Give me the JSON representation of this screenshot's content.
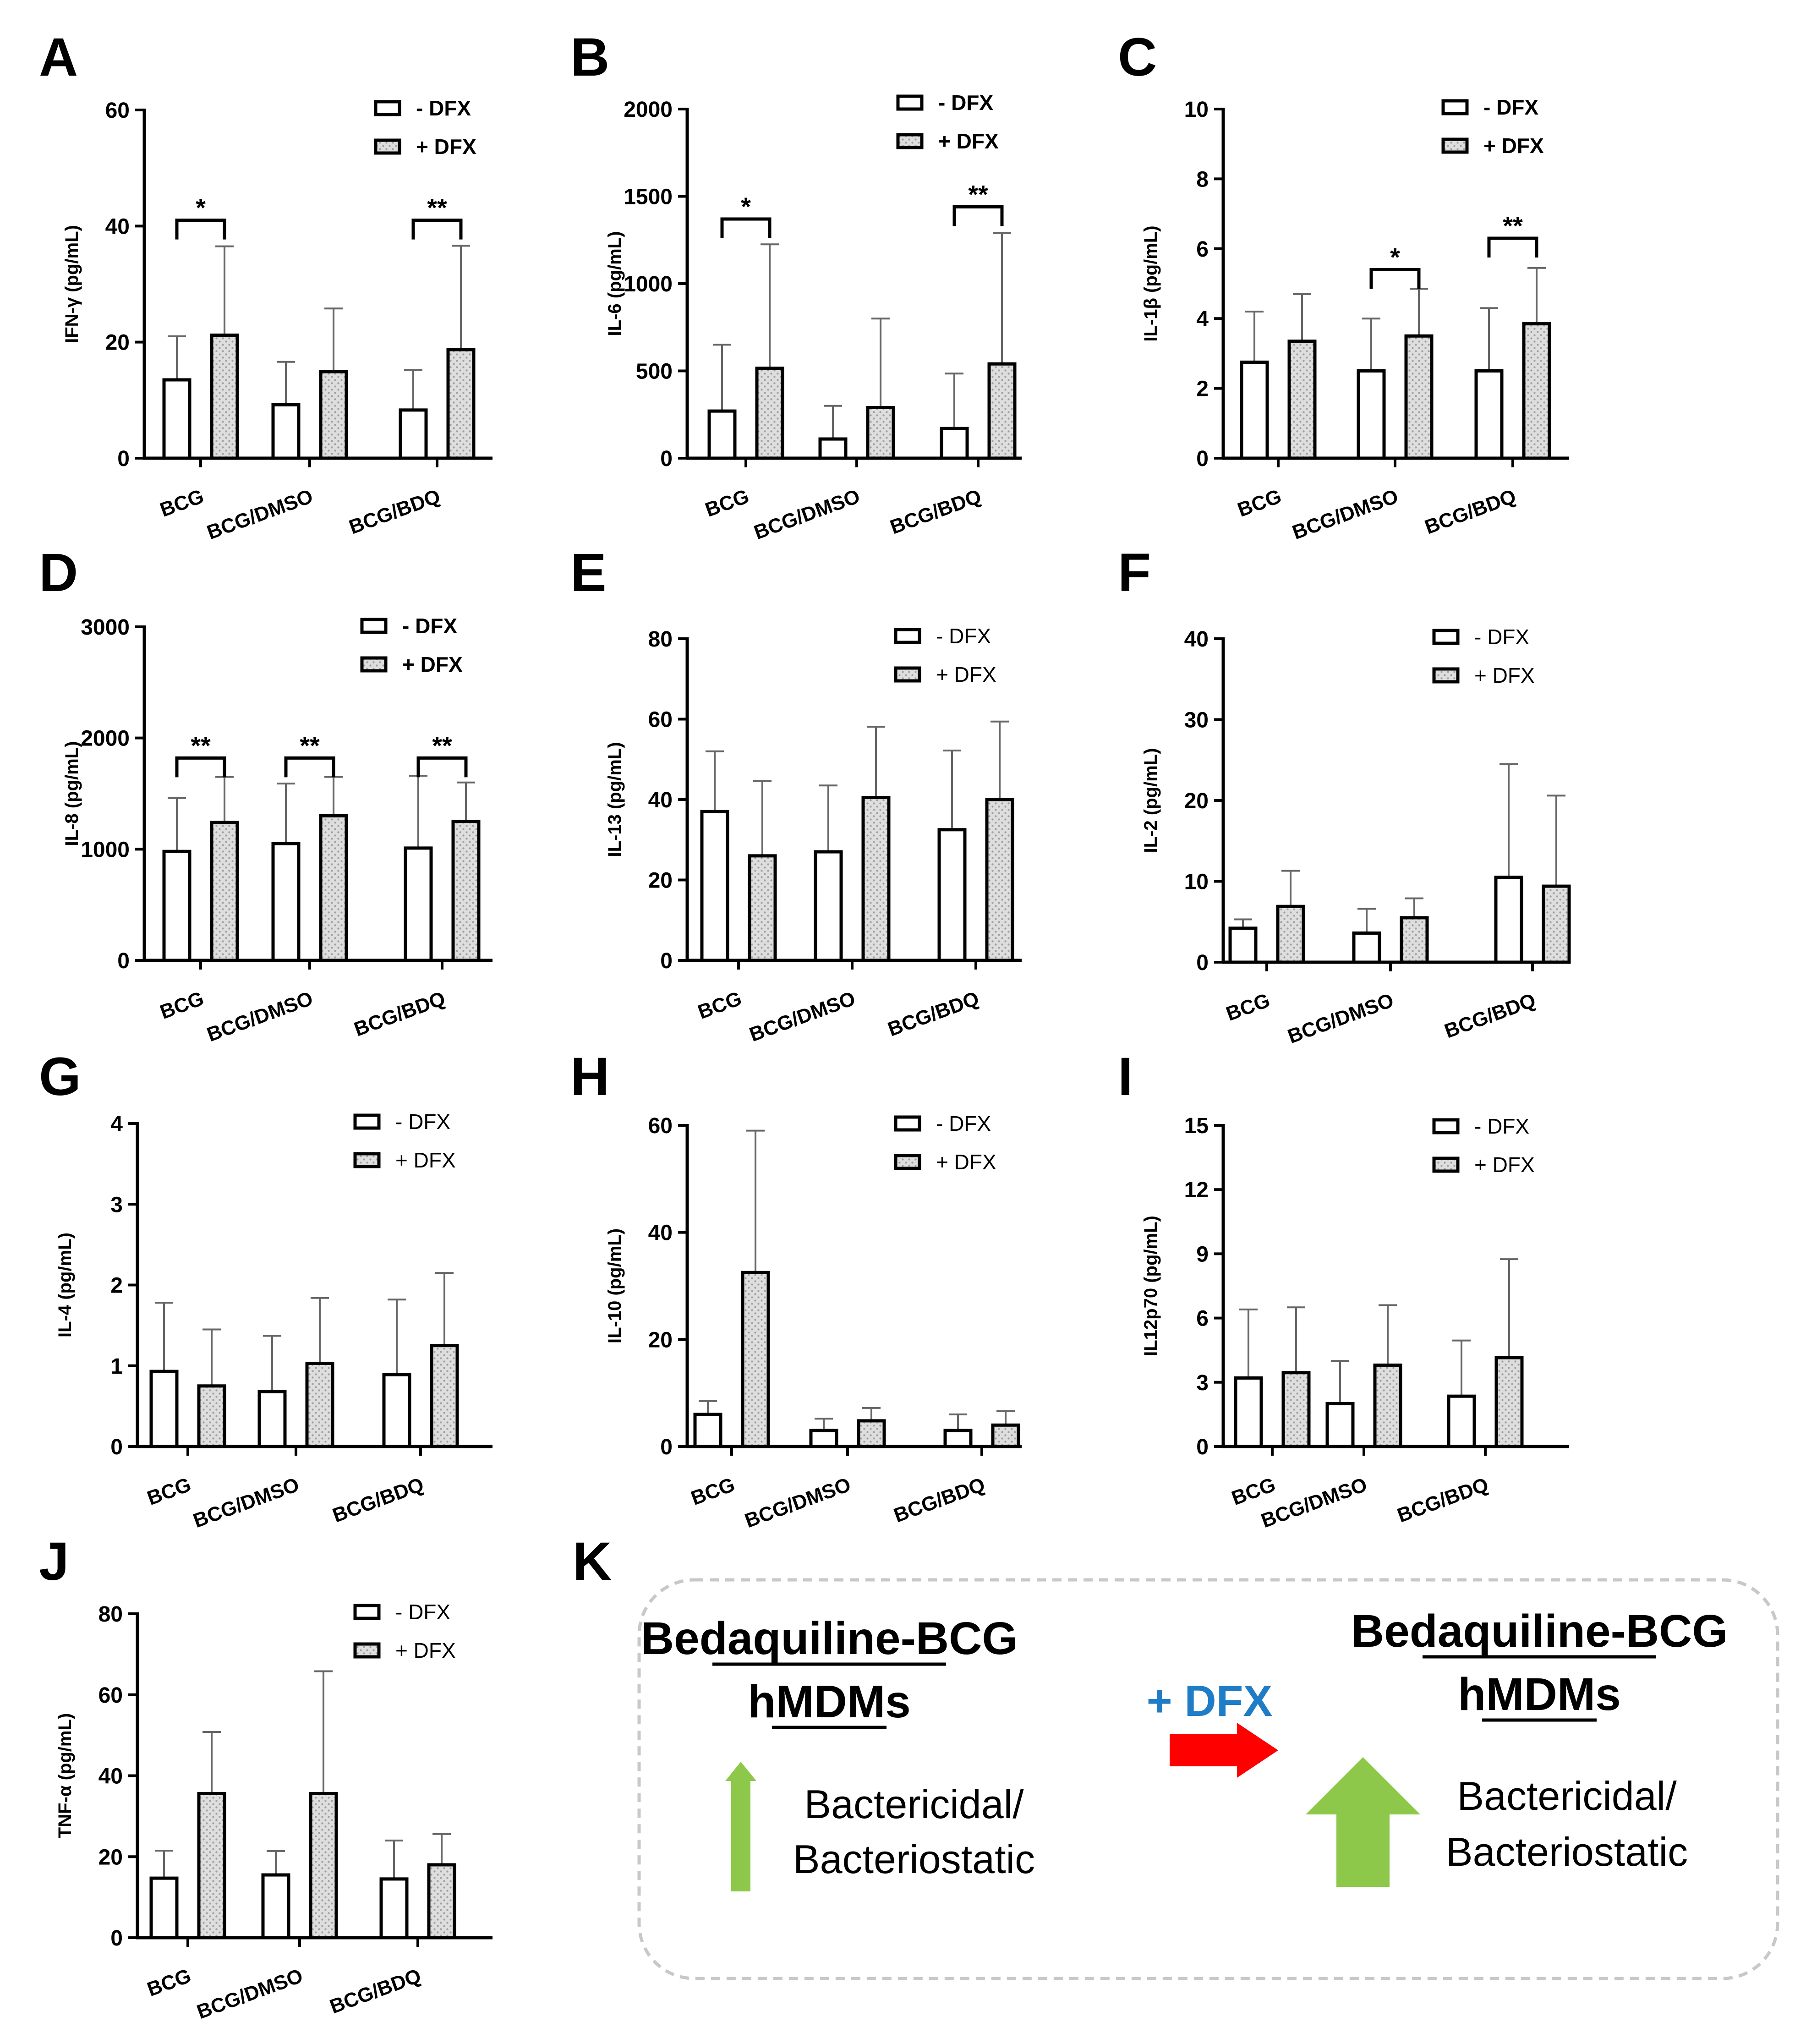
{
  "legend": {
    "minus_label": "- DFX",
    "plus_label": "+ DFX"
  },
  "colors": {
    "bar_minus_fill": "#ffffff",
    "bar_plus_fill": "#d8d8d8",
    "error_bar": "#666666",
    "arrow_red": "#ff0000",
    "arrow_green": "#8dc84a",
    "dfx_text": "#1f7cc6"
  },
  "chart_data": [
    {
      "panel": "A",
      "type": "bar",
      "ylabel": "IFN-γ (pg/mL)",
      "ylim": [
        0,
        60
      ],
      "yticks": [
        "0",
        "20",
        "40",
        "60"
      ],
      "categories": [
        "BCG",
        "BCG/DMSO",
        "BCG/BDQ"
      ],
      "series": [
        {
          "name": "- DFX",
          "values": [
            13.5,
            9.2,
            8.3
          ],
          "errors": [
            7.5,
            7.4,
            6.9
          ]
        },
        {
          "name": "+ DFX",
          "values": [
            21.2,
            14.9,
            18.7
          ],
          "errors": [
            15.3,
            10.9,
            17.9
          ]
        }
      ],
      "significance": [
        {
          "category": "BCG",
          "label": "*",
          "y": 41
        },
        {
          "category": "BCG/BDQ",
          "label": "**",
          "y": 41
        }
      ],
      "legend_style": "bold"
    },
    {
      "panel": "B",
      "type": "bar",
      "ylabel": "IL-6 (pg/mL)",
      "ylim": [
        0,
        2000
      ],
      "yticks": [
        "0",
        "500",
        "1000",
        "1500",
        "2000"
      ],
      "categories": [
        "BCG",
        "BCG/DMSO",
        "BCG/BDQ"
      ],
      "series": [
        {
          "name": "- DFX",
          "values": [
            270,
            110,
            170
          ],
          "errors": [
            380,
            190,
            315
          ]
        },
        {
          "name": "+ DFX",
          "values": [
            515,
            290,
            540
          ],
          "errors": [
            710,
            510,
            750
          ]
        }
      ],
      "significance": [
        {
          "category": "BCG",
          "label": "*",
          "y": 1370
        },
        {
          "category": "BCG/BDQ",
          "label": "**",
          "y": 1440
        }
      ],
      "legend_style": "bold"
    },
    {
      "panel": "C",
      "type": "bar",
      "ylabel": "IL-1β (pg/mL)",
      "ylim": [
        0,
        10
      ],
      "yticks": [
        "0",
        "2",
        "4",
        "6",
        "8",
        "10"
      ],
      "categories": [
        "BCG",
        "BCG/DMSO",
        "BCG/BDQ"
      ],
      "series": [
        {
          "name": "- DFX",
          "values": [
            2.75,
            2.5,
            2.5
          ],
          "errors": [
            1.45,
            1.5,
            1.8
          ]
        },
        {
          "name": "+ DFX",
          "values": [
            3.35,
            3.5,
            3.85
          ],
          "errors": [
            1.35,
            1.35,
            1.6
          ]
        }
      ],
      "significance": [
        {
          "category": "BCG/DMSO",
          "label": "*",
          "y": 5.4
        },
        {
          "category": "BCG/BDQ",
          "label": "**",
          "y": 6.3
        }
      ],
      "legend_style": "bold"
    },
    {
      "panel": "D",
      "type": "bar",
      "ylabel": "IL-8 (pg/mL)",
      "ylim": [
        0,
        3000
      ],
      "yticks": [
        "0",
        "1000",
        "2000",
        "3000"
      ],
      "categories": [
        "BCG",
        "BCG/DMSO",
        "BCG/BDQ"
      ],
      "series": [
        {
          "name": "- DFX",
          "values": [
            980,
            1050,
            1010
          ],
          "errors": [
            480,
            540,
            650
          ]
        },
        {
          "name": "+ DFX",
          "values": [
            1240,
            1300,
            1250
          ],
          "errors": [
            410,
            350,
            350
          ]
        }
      ],
      "significance": [
        {
          "category": "BCG",
          "label": "**",
          "y": 1820
        },
        {
          "category": "BCG/DMSO",
          "label": "**",
          "y": 1820
        },
        {
          "category": "BCG/BDQ",
          "label": "**",
          "y": 1820
        }
      ],
      "legend_style": "bold"
    },
    {
      "panel": "E",
      "type": "bar",
      "ylabel": "IL-13 (pg/mL)",
      "ylim": [
        0,
        80
      ],
      "yticks": [
        "0",
        "20",
        "40",
        "60",
        "80"
      ],
      "categories": [
        "BCG",
        "BCG/DMSO",
        "BCG/BDQ"
      ],
      "series": [
        {
          "name": "- DFX",
          "values": [
            37,
            27,
            32.5
          ],
          "errors": [
            15,
            16.5,
            19.7
          ]
        },
        {
          "name": "+ DFX",
          "values": [
            26,
            40.5,
            40
          ],
          "errors": [
            18.6,
            17.6,
            19.4
          ]
        }
      ],
      "significance": [],
      "legend_style": "light"
    },
    {
      "panel": "F",
      "type": "bar",
      "ylabel": "IL-2 (pg/mL)",
      "ylim": [
        0,
        40
      ],
      "yticks": [
        "0",
        "10",
        "20",
        "30",
        "40"
      ],
      "categories": [
        "BCG",
        "BCG/DMSO",
        "BCG/BDQ"
      ],
      "series": [
        {
          "name": "- DFX",
          "values": [
            4.2,
            3.6,
            10.5
          ],
          "errors": [
            1.1,
            3.0,
            14.0
          ]
        },
        {
          "name": "+ DFX",
          "values": [
            6.9,
            5.5,
            9.4
          ],
          "errors": [
            4.4,
            2.4,
            11.2
          ]
        }
      ],
      "significance": [],
      "legend_style": "light"
    },
    {
      "panel": "G",
      "type": "bar",
      "ylabel": "IL-4 (pg/mL)",
      "ylim": [
        0,
        4
      ],
      "yticks": [
        "0",
        "1",
        "2",
        "3",
        "4"
      ],
      "categories": [
        "BCG",
        "BCG/DMSO",
        "BCG/BDQ"
      ],
      "series": [
        {
          "name": "- DFX",
          "values": [
            0.93,
            0.68,
            0.89
          ],
          "errors": [
            0.85,
            0.69,
            0.93
          ]
        },
        {
          "name": "+ DFX",
          "values": [
            0.75,
            1.03,
            1.25
          ],
          "errors": [
            0.7,
            0.81,
            0.9
          ]
        }
      ],
      "significance": [],
      "legend_style": "light"
    },
    {
      "panel": "H",
      "type": "bar",
      "ylabel": "IL-10 (pg/mL)",
      "ylim": [
        0,
        60
      ],
      "yticks": [
        "0",
        "20",
        "40",
        "60"
      ],
      "categories": [
        "BCG",
        "BCG/DMSO",
        "BCG/BDQ"
      ],
      "series": [
        {
          "name": "- DFX",
          "values": [
            6,
            3,
            3
          ],
          "errors": [
            2.5,
            2.2,
            3.0
          ]
        },
        {
          "name": "+ DFX",
          "values": [
            32.5,
            4.8,
            4
          ],
          "errors": [
            26.5,
            2.4,
            2.6
          ]
        }
      ],
      "significance": [],
      "legend_style": "light"
    },
    {
      "panel": "I",
      "type": "bar",
      "ylabel": "IL12p70 (pg/mL)",
      "ylim": [
        0,
        15
      ],
      "yticks": [
        "0",
        "3",
        "6",
        "9",
        "12",
        "15"
      ],
      "categories": [
        "BCG",
        "BCG/DMSO",
        "BCG/BDQ"
      ],
      "series": [
        {
          "name": "- DFX",
          "values": [
            3.2,
            2.0,
            2.35
          ],
          "errors": [
            3.2,
            2.0,
            2.6
          ]
        },
        {
          "name": "+ DFX",
          "values": [
            3.45,
            3.8,
            4.15
          ],
          "errors": [
            3.05,
            2.8,
            4.6
          ]
        }
      ],
      "significance": [],
      "legend_style": "light"
    },
    {
      "panel": "J",
      "type": "bar",
      "ylabel": "TNF-α (pg/mL)",
      "ylim": [
        0,
        80
      ],
      "yticks": [
        "0",
        "20",
        "40",
        "60",
        "80"
      ],
      "categories": [
        "BCG",
        "BCG/DMSO",
        "BCG/BDQ"
      ],
      "series": [
        {
          "name": "- DFX",
          "values": [
            14.7,
            15.5,
            14.5
          ],
          "errors": [
            6.8,
            5.9,
            9.5
          ]
        },
        {
          "name": "+ DFX",
          "values": [
            35.6,
            35.6,
            18.0
          ],
          "errors": [
            15.2,
            30.2,
            7.6
          ]
        }
      ],
      "significance": [],
      "legend_style": "light"
    }
  ],
  "schematic": {
    "panel": "K",
    "left_title_line1": "Bedaquiline-BCG",
    "left_title_line2": "hMDMs",
    "left_body_line1": "Bactericidal/",
    "left_body_line2": "Bacteriostatic",
    "treatment_label": "+ DFX",
    "right_title_line1": "Bedaquiline-BCG",
    "right_title_line2": "hMDMs",
    "right_body_line1": "Bactericidal/",
    "right_body_line2": "Bacteriostatic"
  }
}
